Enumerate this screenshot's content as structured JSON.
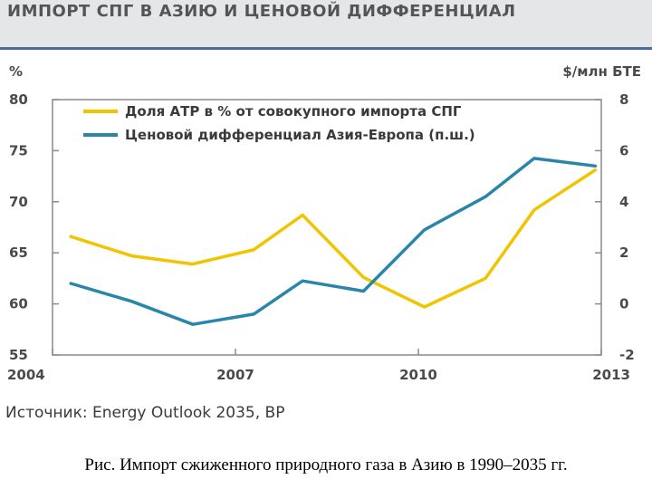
{
  "header": {
    "title": "ИМПОРТ СПГ В АЗИЮ И ЦЕНОВОЙ ДИФФЕРЕНЦИАЛ"
  },
  "source": "Источник: Energy Outlook 2035, BP",
  "caption": "Рис. Импорт сжиженного природного газа в Азию в 1990–2035 гг.",
  "colors": {
    "yellow": "#f2c400",
    "blue": "#2a86a8",
    "banner": "#e5e6e8",
    "banner_border": "#4a6aa6"
  },
  "chart_data": {
    "type": "line",
    "title": "ИМПОРТ СПГ В АЗИЮ И ЦЕНОВОЙ ДИФФЕРЕНЦИАЛ",
    "ylabel_left": "%",
    "ylabel_right": "$/млн БТЕ",
    "xlim": [
      2004,
      2013
    ],
    "ylim_left": [
      55,
      80
    ],
    "ylim_right": [
      -2,
      8
    ],
    "x_ticks": [
      2004,
      2007,
      2010,
      2013
    ],
    "y_ticks_left": [
      55,
      60,
      65,
      70,
      75,
      80
    ],
    "y_ticks_right": [
      -2,
      0,
      2,
      4,
      6,
      8
    ],
    "grid": false,
    "legend_position": "top-left",
    "series": [
      {
        "name": "Доля АТР в % от совокупного импорта СПГ",
        "axis": "left",
        "color": "#f2c400",
        "x": [
          2004.3,
          2005.3,
          2006.3,
          2007.3,
          2008.1,
          2009.1,
          2010.1,
          2011.1,
          2011.9,
          2012.9
        ],
        "values": [
          66.6,
          64.7,
          63.9,
          65.3,
          68.7,
          62.6,
          59.7,
          62.5,
          69.2,
          73.1
        ]
      },
      {
        "name": "Ценовой дифференциал Азия-Европа (п.ш.)",
        "axis": "right",
        "color": "#2a86a8",
        "x": [
          2004.3,
          2005.3,
          2006.3,
          2007.3,
          2008.1,
          2009.1,
          2010.1,
          2011.1,
          2011.9,
          2012.9
        ],
        "values": [
          0.8,
          0.1,
          -0.8,
          -0.4,
          0.9,
          0.5,
          2.9,
          4.2,
          5.7,
          5.4
        ]
      }
    ]
  }
}
